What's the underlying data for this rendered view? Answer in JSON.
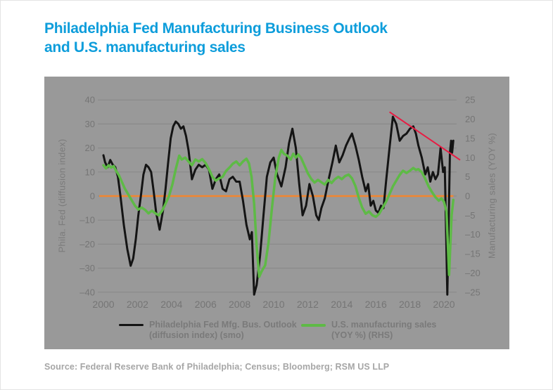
{
  "title": {
    "line1": "Philadelphia Fed Manufacturing Business Outlook",
    "line2": "and U.S. manufacturing sales"
  },
  "source": "Source: Federal Reserve Bank of Philadelphia; Census; Bloomberg; RSM US LLP",
  "colors": {
    "title_blue": "#0d9ddb",
    "panel_gray": "#999999",
    "grid_gray": "#878787",
    "tick_gray": "#757575",
    "phila_fed_black": "#141414",
    "sales_green": "#5eba46",
    "zero_orange": "#f2862f",
    "trend_red": "#e81c43"
  },
  "legend": [
    {
      "label_line1": "Philadelphia Fed Mfg. Bus. Outlook",
      "label_line2": "(diffusion index) (smo)",
      "color": "#141414"
    },
    {
      "label_line1": "U.S. manufacturing sales",
      "label_line2": "(YOY %) (RHS)",
      "color": "#5eba46"
    }
  ],
  "chart_data": {
    "type": "line",
    "title": "Philadelphia Fed Manufacturing Business Outlook and U.S. manufacturing sales",
    "grid": true,
    "legend_position": "bottom",
    "left_axis": {
      "label": "Phila. Fed (diffusion index)",
      "range": [
        -40,
        40
      ],
      "ticks": [
        {
          "value": 40,
          "label": "40"
        },
        {
          "value": 30,
          "label": "30"
        },
        {
          "value": 20,
          "label": "20"
        },
        {
          "value": 10,
          "label": "10"
        },
        {
          "value": 0,
          "label": "0"
        },
        {
          "value": -10,
          "label": "–10"
        },
        {
          "value": -20,
          "label": "–20"
        },
        {
          "value": -30,
          "label": "–30"
        },
        {
          "value": -40,
          "label": "–40"
        }
      ]
    },
    "right_axis": {
      "label": "Manufacturing sales (YOY %)",
      "range": [
        -25,
        25
      ],
      "ticks": [
        {
          "value": 25,
          "label": "25"
        },
        {
          "value": 20,
          "label": "20"
        },
        {
          "value": 15,
          "label": "15"
        },
        {
          "value": 10,
          "label": "10"
        },
        {
          "value": 5,
          "label": "5"
        },
        {
          "value": 0,
          "label": "0"
        },
        {
          "value": -5,
          "label": "–5"
        },
        {
          "value": -10,
          "label": "–10"
        },
        {
          "value": -15,
          "label": "–15"
        },
        {
          "value": -20,
          "label": "–20"
        },
        {
          "value": -25,
          "label": "–25"
        }
      ]
    },
    "x_axis": {
      "range": [
        2000,
        2020.6
      ],
      "ticks": [
        {
          "value": 2000,
          "label": "2000"
        },
        {
          "value": 2002,
          "label": "2002"
        },
        {
          "value": 2004,
          "label": "2004"
        },
        {
          "value": 2006,
          "label": "2006"
        },
        {
          "value": 2008,
          "label": "2008"
        },
        {
          "value": 2010,
          "label": "2010"
        },
        {
          "value": 2012,
          "label": "2012"
        },
        {
          "value": 2014,
          "label": "2014"
        },
        {
          "value": 2016,
          "label": "2016"
        },
        {
          "value": 2018,
          "label": "2018"
        },
        {
          "value": 2020,
          "label": "2020"
        }
      ]
    },
    "zero_line": {
      "axis": "left",
      "y": 0,
      "color": "#f2862f"
    },
    "trend_line": {
      "from": [
        2016.8,
        35
      ],
      "to": [
        2020.95,
        15
      ],
      "axis": "left",
      "color": "#e81c43"
    },
    "series": [
      {
        "id": "phila-fed",
        "name": "Philadelphia Fed Mfg. Bus. Outlook (diffusion index) (smo)",
        "axis": "left",
        "color": "#141414",
        "line_width": 3,
        "points": [
          [
            2000.0,
            17
          ],
          [
            2000.1,
            14
          ],
          [
            2000.25,
            12
          ],
          [
            2000.4,
            15
          ],
          [
            2000.55,
            13
          ],
          [
            2000.7,
            12
          ],
          [
            2000.85,
            8
          ],
          [
            2001.0,
            0
          ],
          [
            2001.2,
            -12
          ],
          [
            2001.4,
            -22
          ],
          [
            2001.6,
            -29
          ],
          [
            2001.75,
            -26
          ],
          [
            2001.9,
            -18
          ],
          [
            2002.05,
            -8
          ],
          [
            2002.2,
            0
          ],
          [
            2002.35,
            9
          ],
          [
            2002.5,
            13
          ],
          [
            2002.65,
            12
          ],
          [
            2002.8,
            10
          ],
          [
            2002.95,
            2
          ],
          [
            2003.1,
            -7
          ],
          [
            2003.3,
            -14
          ],
          [
            2003.5,
            -6
          ],
          [
            2003.65,
            3
          ],
          [
            2003.8,
            14
          ],
          [
            2003.95,
            24
          ],
          [
            2004.1,
            29
          ],
          [
            2004.25,
            31
          ],
          [
            2004.4,
            30
          ],
          [
            2004.55,
            28
          ],
          [
            2004.7,
            29
          ],
          [
            2004.85,
            25
          ],
          [
            2005.0,
            19
          ],
          [
            2005.2,
            7
          ],
          [
            2005.4,
            11
          ],
          [
            2005.6,
            13
          ],
          [
            2005.8,
            12
          ],
          [
            2006.0,
            13
          ],
          [
            2006.2,
            11
          ],
          [
            2006.4,
            3
          ],
          [
            2006.6,
            7
          ],
          [
            2006.8,
            9
          ],
          [
            2007.0,
            3
          ],
          [
            2007.2,
            2
          ],
          [
            2007.4,
            7
          ],
          [
            2007.6,
            8
          ],
          [
            2007.8,
            6
          ],
          [
            2008.0,
            6
          ],
          [
            2008.2,
            -2
          ],
          [
            2008.4,
            -12
          ],
          [
            2008.6,
            -18
          ],
          [
            2008.72,
            -15
          ],
          [
            2008.85,
            -41
          ],
          [
            2009.0,
            -37
          ],
          [
            2009.2,
            -25
          ],
          [
            2009.4,
            -8
          ],
          [
            2009.6,
            8
          ],
          [
            2009.8,
            14
          ],
          [
            2010.0,
            16
          ],
          [
            2010.2,
            9
          ],
          [
            2010.45,
            4
          ],
          [
            2010.7,
            12
          ],
          [
            2010.9,
            22
          ],
          [
            2011.1,
            28
          ],
          [
            2011.3,
            20
          ],
          [
            2011.5,
            5
          ],
          [
            2011.7,
            -8
          ],
          [
            2011.9,
            -4
          ],
          [
            2012.1,
            5
          ],
          [
            2012.3,
            0
          ],
          [
            2012.5,
            -8
          ],
          [
            2012.65,
            -10
          ],
          [
            2012.8,
            -5
          ],
          [
            2013.0,
            -1
          ],
          [
            2013.2,
            6
          ],
          [
            2013.45,
            14
          ],
          [
            2013.65,
            21
          ],
          [
            2013.85,
            14
          ],
          [
            2014.05,
            17
          ],
          [
            2014.25,
            21
          ],
          [
            2014.45,
            24
          ],
          [
            2014.6,
            26
          ],
          [
            2014.8,
            21
          ],
          [
            2015.0,
            15
          ],
          [
            2015.2,
            8
          ],
          [
            2015.4,
            2
          ],
          [
            2015.55,
            5
          ],
          [
            2015.7,
            -4
          ],
          [
            2015.85,
            -2
          ],
          [
            2016.0,
            -6
          ],
          [
            2016.15,
            -7
          ],
          [
            2016.3,
            -4
          ],
          [
            2016.45,
            -5
          ],
          [
            2016.6,
            6
          ],
          [
            2016.8,
            20
          ],
          [
            2017.0,
            33
          ],
          [
            2017.2,
            30
          ],
          [
            2017.4,
            23
          ],
          [
            2017.6,
            25
          ],
          [
            2017.8,
            26
          ],
          [
            2018.0,
            28
          ],
          [
            2018.2,
            29
          ],
          [
            2018.35,
            26
          ],
          [
            2018.5,
            21
          ],
          [
            2018.7,
            16
          ],
          [
            2018.9,
            9
          ],
          [
            2019.05,
            12
          ],
          [
            2019.2,
            6
          ],
          [
            2019.35,
            10
          ],
          [
            2019.5,
            7
          ],
          [
            2019.65,
            9
          ],
          [
            2019.8,
            20
          ],
          [
            2019.95,
            10
          ],
          [
            2020.05,
            12
          ],
          [
            2020.2,
            -41
          ],
          [
            2020.35,
            18
          ],
          [
            2020.42,
            23
          ],
          [
            2020.48,
            18
          ],
          [
            2020.55,
            23
          ]
        ]
      },
      {
        "id": "mfg-sales",
        "name": "U.S. manufacturing sales (YOY %) (RHS)",
        "axis": "right",
        "color": "#5eba46",
        "line_width": 3.5,
        "points": [
          [
            2000.0,
            8
          ],
          [
            2000.15,
            7.2
          ],
          [
            2000.3,
            8
          ],
          [
            2000.45,
            7.4
          ],
          [
            2000.6,
            7.8
          ],
          [
            2000.75,
            6.5
          ],
          [
            2000.9,
            5.5
          ],
          [
            2001.05,
            4
          ],
          [
            2001.25,
            2
          ],
          [
            2001.45,
            0.5
          ],
          [
            2001.65,
            -1
          ],
          [
            2001.85,
            -2.5
          ],
          [
            2002.05,
            -3.5
          ],
          [
            2002.25,
            -3
          ],
          [
            2002.45,
            -3.6
          ],
          [
            2002.65,
            -4.5
          ],
          [
            2002.85,
            -3.8
          ],
          [
            2003.05,
            -4.5
          ],
          [
            2003.25,
            -5
          ],
          [
            2003.45,
            -3.8
          ],
          [
            2003.65,
            -2
          ],
          [
            2003.85,
            0
          ],
          [
            2004.05,
            3
          ],
          [
            2004.25,
            7
          ],
          [
            2004.45,
            10.5
          ],
          [
            2004.6,
            9.5
          ],
          [
            2004.8,
            10
          ],
          [
            2005.0,
            9
          ],
          [
            2005.2,
            8
          ],
          [
            2005.4,
            9.5
          ],
          [
            2005.6,
            9
          ],
          [
            2005.8,
            9.6
          ],
          [
            2006.0,
            8.6
          ],
          [
            2006.2,
            7
          ],
          [
            2006.4,
            5
          ],
          [
            2006.6,
            4
          ],
          [
            2006.8,
            4.6
          ],
          [
            2007.0,
            5
          ],
          [
            2007.2,
            6.5
          ],
          [
            2007.4,
            7.4
          ],
          [
            2007.6,
            8.4
          ],
          [
            2007.8,
            9
          ],
          [
            2008.0,
            8
          ],
          [
            2008.2,
            9
          ],
          [
            2008.4,
            9.7
          ],
          [
            2008.55,
            8.5
          ],
          [
            2008.7,
            5
          ],
          [
            2008.85,
            -2
          ],
          [
            2009.0,
            -13
          ],
          [
            2009.15,
            -21
          ],
          [
            2009.3,
            -19.5
          ],
          [
            2009.5,
            -18
          ],
          [
            2009.7,
            -12
          ],
          [
            2009.9,
            -3
          ],
          [
            2010.1,
            5
          ],
          [
            2010.3,
            10
          ],
          [
            2010.45,
            12
          ],
          [
            2010.6,
            11
          ],
          [
            2010.8,
            10.5
          ],
          [
            2011.0,
            9.5
          ],
          [
            2011.15,
            11
          ],
          [
            2011.3,
            10
          ],
          [
            2011.45,
            10.8
          ],
          [
            2011.6,
            10
          ],
          [
            2011.8,
            8
          ],
          [
            2012.0,
            6
          ],
          [
            2012.2,
            4.5
          ],
          [
            2012.4,
            3.5
          ],
          [
            2012.6,
            4.2
          ],
          [
            2012.8,
            3.6
          ],
          [
            2013.0,
            3
          ],
          [
            2013.2,
            4.2
          ],
          [
            2013.4,
            3.4
          ],
          [
            2013.6,
            4.4
          ],
          [
            2013.8,
            5
          ],
          [
            2014.0,
            4.4
          ],
          [
            2014.2,
            5.2
          ],
          [
            2014.4,
            5.6
          ],
          [
            2014.6,
            4.6
          ],
          [
            2014.8,
            2.6
          ],
          [
            2015.0,
            -0.5
          ],
          [
            2015.2,
            -3
          ],
          [
            2015.4,
            -4.6
          ],
          [
            2015.6,
            -4
          ],
          [
            2015.8,
            -5
          ],
          [
            2016.0,
            -5.4
          ],
          [
            2016.2,
            -4.6
          ],
          [
            2016.4,
            -3
          ],
          [
            2016.6,
            -1.5
          ],
          [
            2016.8,
            0.5
          ],
          [
            2017.0,
            2.5
          ],
          [
            2017.2,
            4
          ],
          [
            2017.4,
            5.5
          ],
          [
            2017.6,
            6.6
          ],
          [
            2017.8,
            6
          ],
          [
            2018.0,
            6.6
          ],
          [
            2018.2,
            7.3
          ],
          [
            2018.35,
            6.8
          ],
          [
            2018.5,
            7
          ],
          [
            2018.7,
            6.2
          ],
          [
            2018.9,
            4.5
          ],
          [
            2019.1,
            2.5
          ],
          [
            2019.3,
            1
          ],
          [
            2019.5,
            -0.3
          ],
          [
            2019.7,
            -1.2
          ],
          [
            2019.85,
            -0.6
          ],
          [
            2020.0,
            -1.5
          ],
          [
            2020.15,
            -4
          ],
          [
            2020.3,
            -20.5
          ],
          [
            2020.45,
            -5
          ],
          [
            2020.55,
            -1
          ]
        ]
      }
    ]
  }
}
